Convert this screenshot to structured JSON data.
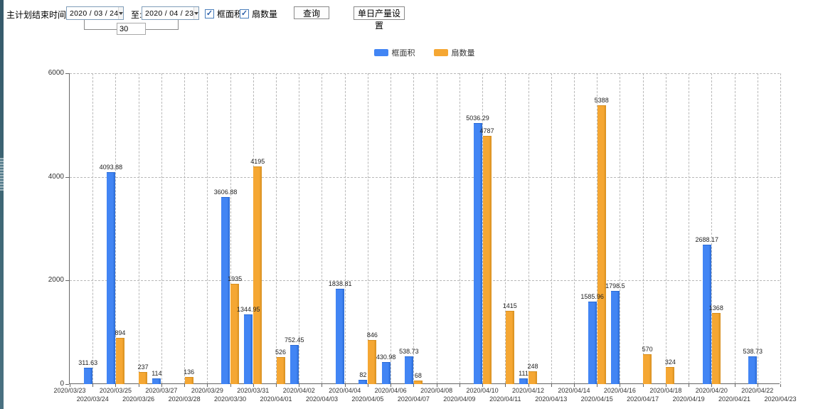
{
  "toolbar": {
    "label_main": "主计划结束时间:",
    "date_from": "2020 / 03 / 24",
    "label_to": "至:",
    "date_to": "2020 / 04 / 23",
    "days_value": "30",
    "checkbox_frame_area": "框面积",
    "checkbox_fan_count": "扇数量",
    "query_button": "查询",
    "daily_output_button": "单日产量设置"
  },
  "chart_data": {
    "type": "bar",
    "title": "",
    "xlabel": "",
    "ylabel": "",
    "ylim": [
      0,
      6000
    ],
    "yticks": [
      0,
      2000,
      4000,
      6000
    ],
    "grid": "dashed",
    "legend_position": "top-center",
    "categories": [
      "2020/03/23",
      "2020/03/24",
      "2020/03/25",
      "2020/03/26",
      "2020/03/27",
      "2020/03/28",
      "2020/03/29",
      "2020/03/30",
      "2020/03/31",
      "2020/04/01",
      "2020/04/02",
      "2020/04/03",
      "2020/04/04",
      "2020/04/05",
      "2020/04/06",
      "2020/04/07",
      "2020/04/08",
      "2020/04/09",
      "2020/04/10",
      "2020/04/11",
      "2020/04/12",
      "2020/04/13",
      "2020/04/14",
      "2020/04/15",
      "2020/04/16",
      "2020/04/17",
      "2020/04/18",
      "2020/04/19",
      "2020/04/20",
      "2020/04/21",
      "2020/04/22",
      "2020/04/23"
    ],
    "series": [
      {
        "name": "框面积",
        "color": "#4285F4",
        "border_color": "#2a6ad4",
        "values": [
          null,
          311.63,
          4093.88,
          null,
          114,
          null,
          null,
          3606.88,
          1344.95,
          null,
          752.45,
          null,
          1838.81,
          82,
          430.98,
          538.73,
          null,
          null,
          5036.29,
          null,
          111,
          null,
          null,
          1585.96,
          1798.5,
          null,
          null,
          null,
          2688.17,
          null,
          538.73,
          null
        ]
      },
      {
        "name": "扇数量",
        "color": "#F5A733",
        "border_color": "#D68F1F",
        "values": [
          null,
          null,
          894,
          237,
          null,
          136,
          null,
          1935,
          4195,
          526,
          null,
          null,
          null,
          846,
          null,
          68,
          null,
          null,
          4787,
          1415,
          248,
          null,
          null,
          5388,
          null,
          570,
          324,
          null,
          1368,
          null,
          null,
          null
        ]
      }
    ]
  }
}
